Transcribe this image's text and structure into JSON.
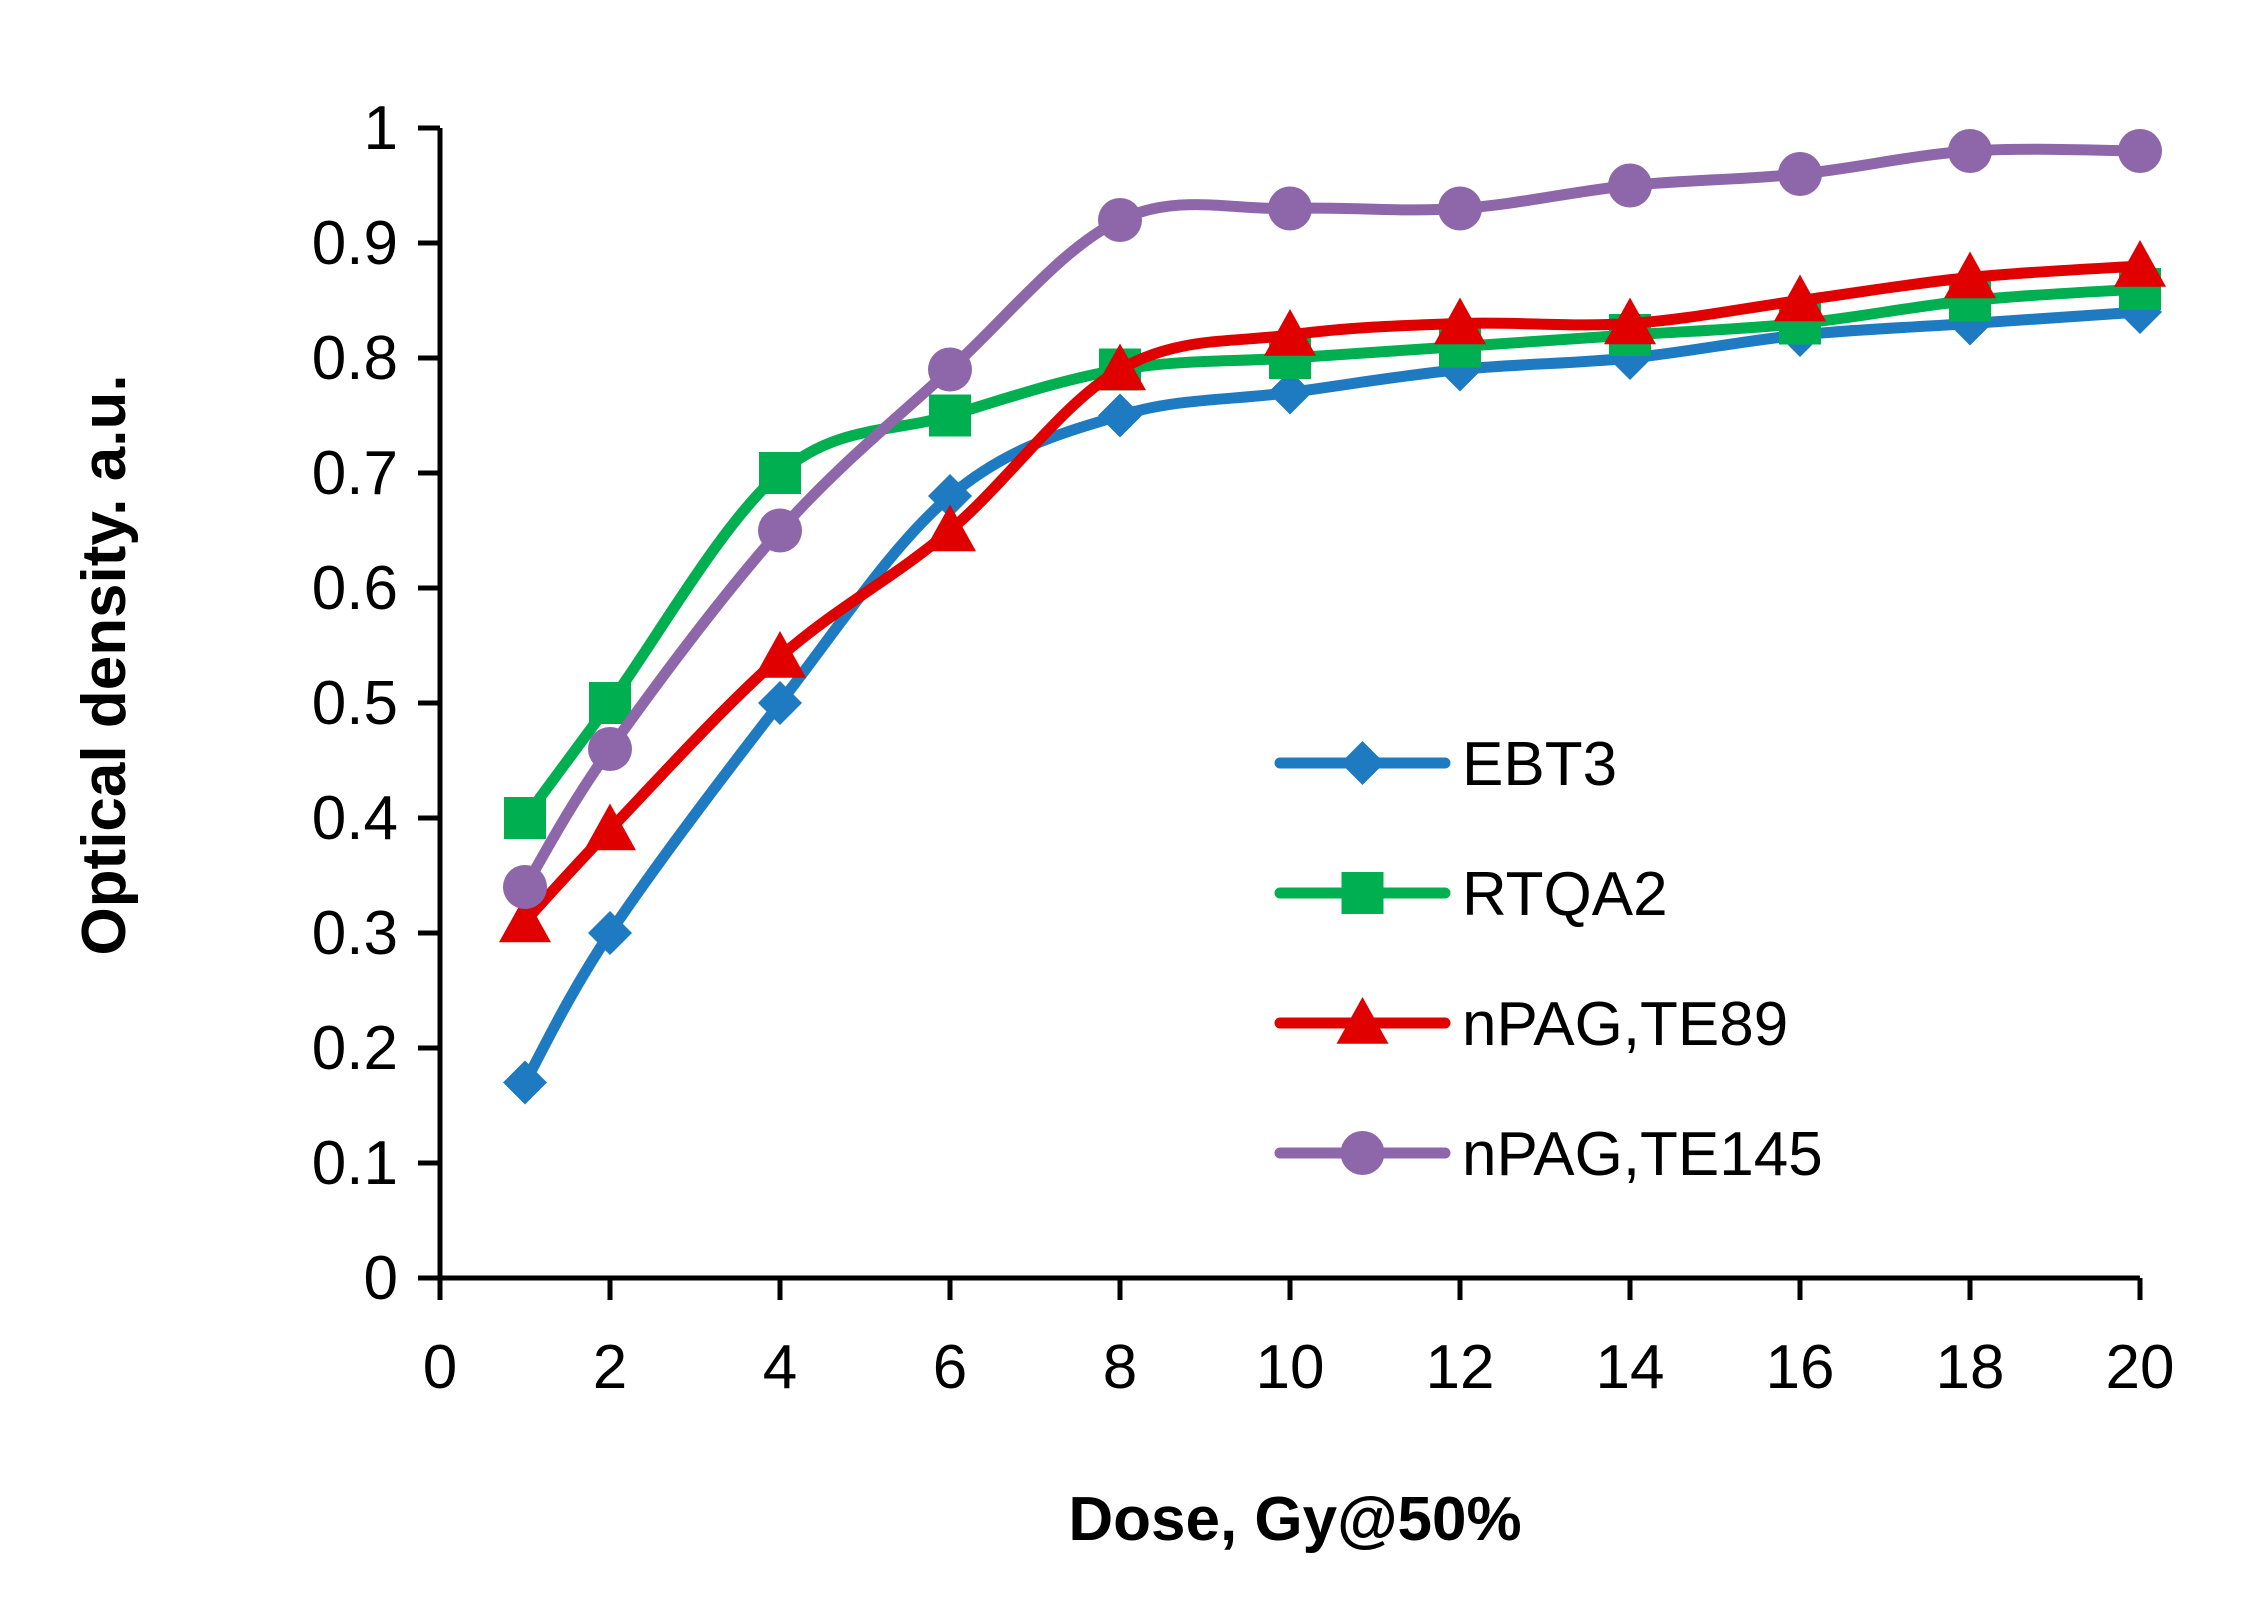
{
  "chart_data": {
    "type": "line",
    "title": "",
    "xlabel": "Dose, Gy@50%",
    "ylabel": "Optical density. a.u.",
    "xlim": [
      0,
      20
    ],
    "ylim": [
      0,
      1
    ],
    "xticks": [
      "0",
      "2",
      "4",
      "6",
      "8",
      "10",
      "12",
      "14",
      "16",
      "18",
      "20"
    ],
    "yticks": [
      "0",
      "0.1",
      "0.2",
      "0.3",
      "0.4",
      "0.5",
      "0.6",
      "0.7",
      "0.8",
      "0.9",
      "1"
    ],
    "grid": false,
    "legend_position": "center-right",
    "x": [
      1,
      2,
      4,
      6,
      8,
      10,
      12,
      14,
      16,
      18,
      20
    ],
    "series": [
      {
        "name": "EBT3",
        "color": "#1F7BC1",
        "marker": "diamond",
        "values": [
          0.17,
          0.3,
          0.5,
          0.68,
          0.75,
          0.77,
          0.79,
          0.8,
          0.82,
          0.83,
          0.84
        ]
      },
      {
        "name": "RTQA2",
        "color": "#00B050",
        "marker": "square",
        "values": [
          0.4,
          0.5,
          0.7,
          0.75,
          0.79,
          0.8,
          0.81,
          0.82,
          0.83,
          0.85,
          0.86
        ]
      },
      {
        "name": "nPAG,TE89",
        "color": "#E00000",
        "marker": "triangle",
        "values": [
          0.31,
          0.39,
          0.54,
          0.65,
          0.79,
          0.82,
          0.83,
          0.83,
          0.85,
          0.87,
          0.88
        ]
      },
      {
        "name": "nPAG,TE145",
        "color": "#8E67AA",
        "marker": "circle",
        "values": [
          0.34,
          0.46,
          0.65,
          0.79,
          0.92,
          0.93,
          0.93,
          0.95,
          0.96,
          0.98,
          0.98
        ]
      }
    ]
  }
}
